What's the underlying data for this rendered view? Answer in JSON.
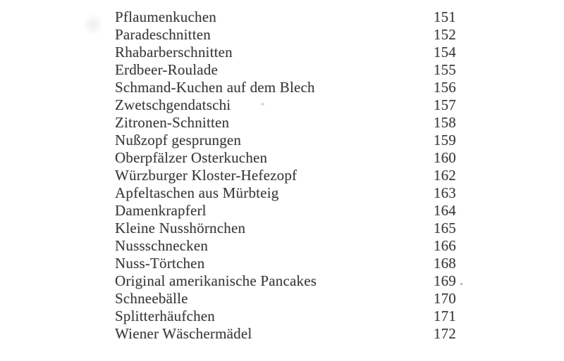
{
  "colors": {
    "paper": "#ffffff",
    "ink": "#3b3b3b"
  },
  "toc": {
    "rows": [
      {
        "title": "Pflaumenkuchen",
        "page": "151"
      },
      {
        "title": "Paradeschnitten",
        "page": "152"
      },
      {
        "title": "Rhabarberschnitten",
        "page": "154"
      },
      {
        "title": "Erdbeer-Roulade",
        "page": "155"
      },
      {
        "title": "Schmand-Kuchen auf dem Blech",
        "page": "156"
      },
      {
        "title": "Zwetschgendatschi",
        "page": "157"
      },
      {
        "title": "Zitronen-Schnitten",
        "page": "158"
      },
      {
        "title": "Nußzopf gesprungen",
        "page": "159"
      },
      {
        "title": "Oberpfälzer Osterkuchen",
        "page": "160"
      },
      {
        "title": "Würzburger Kloster-Hefezopf",
        "page": "162"
      },
      {
        "title": "Apfeltaschen aus Mürbteig",
        "page": "163"
      },
      {
        "title": "Damenkrapferl",
        "page": "164"
      },
      {
        "title": "Kleine Nusshörnchen",
        "page": "165"
      },
      {
        "title": "Nussschnecken",
        "page": "166"
      },
      {
        "title": "Nuss-Törtchen",
        "page": "168"
      },
      {
        "title": "Original amerikanische Pancakes",
        "page": "169"
      },
      {
        "title": "Schneebälle",
        "page": "170"
      },
      {
        "title": "Splitterhäufchen",
        "page": "171"
      },
      {
        "title": "Wiener Wäschermädel",
        "page": "172"
      }
    ]
  }
}
